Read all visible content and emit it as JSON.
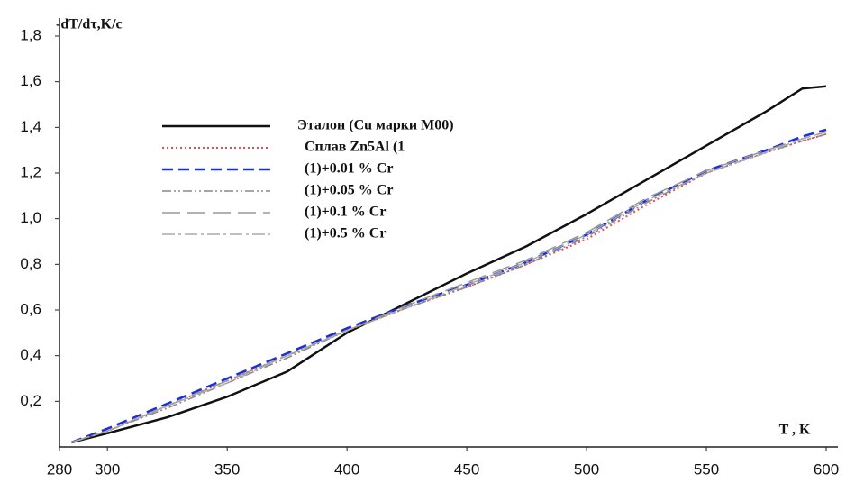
{
  "chart_data": {
    "type": "line",
    "y_label": "-dT/dτ,K/c",
    "x_label": "T , K",
    "x": [
      285,
      300,
      325,
      350,
      375,
      400,
      425,
      450,
      475,
      500,
      525,
      550,
      575,
      590,
      600
    ],
    "series": [
      {
        "name": "Эталон (Cu марки М00)",
        "color": "#111111",
        "dash": "none",
        "width": 2.5,
        "values": [
          0.02,
          0.06,
          0.13,
          0.22,
          0.33,
          0.5,
          0.63,
          0.76,
          0.88,
          1.02,
          1.17,
          1.32,
          1.47,
          1.57,
          1.58
        ]
      },
      {
        "name": "Сплав Zn5Al (1",
        "color": "#e05050",
        "dash": "2 3",
        "width": 2,
        "values": [
          0.02,
          0.07,
          0.18,
          0.29,
          0.4,
          0.51,
          0.61,
          0.7,
          0.8,
          0.91,
          1.06,
          1.2,
          1.29,
          1.34,
          1.37
        ]
      },
      {
        "name": "(1)+0.01 % Cr",
        "color": "#1a2fd6",
        "dash": "12 6",
        "width": 2.5,
        "values": [
          0.02,
          0.08,
          0.19,
          0.3,
          0.41,
          0.52,
          0.62,
          0.71,
          0.81,
          0.93,
          1.08,
          1.21,
          1.3,
          1.36,
          1.39
        ]
      },
      {
        "name": "(1)+0.05 % Cr",
        "color": "#888888",
        "dash": "10 3 2 3 2 3",
        "width": 1.5,
        "values": [
          0.02,
          0.07,
          0.17,
          0.28,
          0.39,
          0.51,
          0.61,
          0.7,
          0.8,
          0.92,
          1.07,
          1.2,
          1.29,
          1.34,
          1.37
        ]
      },
      {
        "name": "(1)+0.1 % Cr",
        "color": "#999999",
        "dash": "20 8",
        "width": 1.5,
        "values": [
          0.02,
          0.07,
          0.18,
          0.29,
          0.4,
          0.51,
          0.62,
          0.72,
          0.82,
          0.94,
          1.09,
          1.21,
          1.3,
          1.35,
          1.38
        ]
      },
      {
        "name": "(1)+0.5 % Cr",
        "color": "#aaaaaa",
        "dash": "14 4 3 4",
        "width": 1.5,
        "values": [
          0.02,
          0.07,
          0.18,
          0.28,
          0.4,
          0.51,
          0.61,
          0.71,
          0.81,
          0.93,
          1.08,
          1.2,
          1.29,
          1.35,
          1.38
        ]
      }
    ],
    "xlim": [
      280,
      600
    ],
    "xticks": [
      280,
      300,
      350,
      400,
      450,
      500,
      550,
      600
    ],
    "ylim": [
      0,
      1.8
    ],
    "yticks": [
      {
        "value": 0.2,
        "label": "0,2"
      },
      {
        "value": 0.4,
        "label": "0,4"
      },
      {
        "value": 0.6,
        "label": "0,6"
      },
      {
        "value": 0.8,
        "label": "0,8"
      },
      {
        "value": 1.0,
        "label": "1,0"
      },
      {
        "value": 1.2,
        "label": "1,2"
      },
      {
        "value": 1.4,
        "label": "1,4"
      },
      {
        "value": 1.6,
        "label": "1,6"
      },
      {
        "value": 1.8,
        "label": "1,8"
      }
    ],
    "grid": false
  }
}
